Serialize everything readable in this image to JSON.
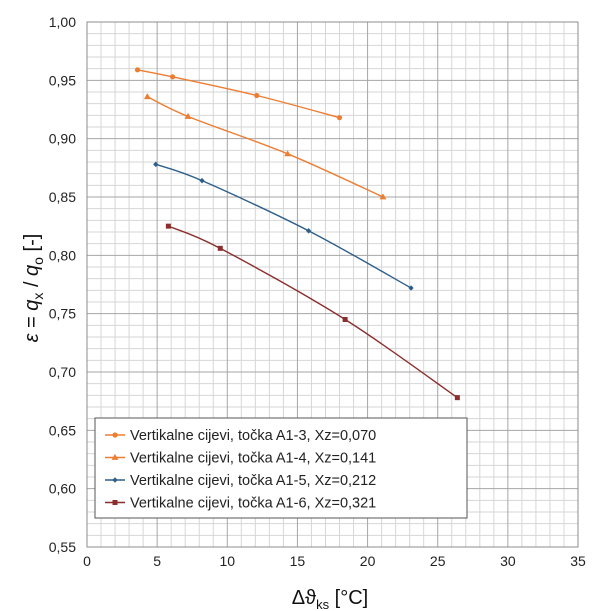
{
  "chart_data": {
    "type": "line",
    "title": "",
    "xlabel": {
      "base": "Δϑ",
      "sub": "ks",
      "unit": " [°C]"
    },
    "ylabel": {
      "eps": "ε",
      "eq": " = ",
      "q1": "q",
      "sub1": "x",
      "slash": " / ",
      "q2": "q",
      "sub2": "o",
      "unit": " [-]"
    },
    "xlim": [
      0,
      35
    ],
    "ylim": [
      0.55,
      1.0
    ],
    "x_ticks": [
      "0",
      "5",
      "10",
      "15",
      "20",
      "25",
      "30",
      "35"
    ],
    "y_ticks": [
      "0,55",
      "0,60",
      "0,65",
      "0,70",
      "0,75",
      "0,80",
      "0,85",
      "0,90",
      "0,95",
      "1,00"
    ],
    "grid": true,
    "legend_position": "bottom-left",
    "series": [
      {
        "name": "Vertikalne cijevi, točka A1-3, Xz=0,070",
        "color": "#ed7d31",
        "marker": "circle",
        "x": [
          3.6,
          6.1,
          12.1,
          18.0
        ],
        "y": [
          0.959,
          0.953,
          0.937,
          0.918
        ]
      },
      {
        "name": "Vertikalne cijevi, točka A1-4, Xz=0,141",
        "color": "#ed7d31",
        "marker": "triangle",
        "x": [
          4.3,
          7.2,
          14.3,
          21.1
        ],
        "y": [
          0.936,
          0.919,
          0.887,
          0.85
        ]
      },
      {
        "name": "Vertikalne cijevi, točka A1-5, Xz=0,212",
        "color": "#2e5f8a",
        "marker": "diamond",
        "x": [
          4.9,
          8.2,
          15.8,
          23.1
        ],
        "y": [
          0.878,
          0.864,
          0.821,
          0.772
        ]
      },
      {
        "name": "Vertikalne cijevi, točka A1-6, Xz=0,321",
        "color": "#8b2e2e",
        "marker": "square",
        "x": [
          5.8,
          9.5,
          18.4,
          26.4
        ],
        "y": [
          0.825,
          0.806,
          0.745,
          0.678
        ]
      }
    ]
  }
}
